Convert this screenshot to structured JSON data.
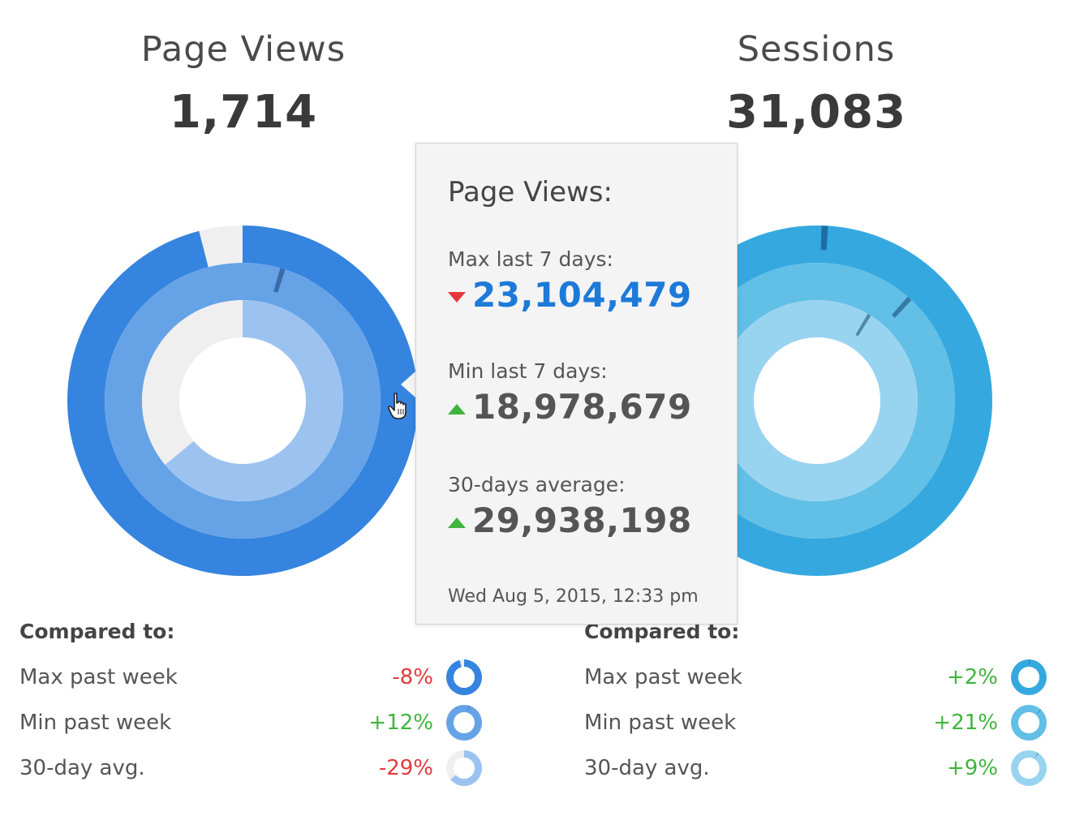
{
  "panels": [
    {
      "title": "Page Views",
      "value": "1,714",
      "compared_label": "Compared to:",
      "rows": [
        {
          "label": "Max past week",
          "pct": "-8%",
          "trend": "down"
        },
        {
          "label": "Min past week",
          "pct": "+12%",
          "trend": "up"
        },
        {
          "label": "30-day avg.",
          "pct": "-29%",
          "trend": "down"
        }
      ]
    },
    {
      "title": "Sessions",
      "value": "31,083",
      "compared_label": "Compared to:",
      "rows": [
        {
          "label": "Max past week",
          "pct": "+2%",
          "trend": "up"
        },
        {
          "label": "Min past week",
          "pct": "+21%",
          "trend": "up"
        },
        {
          "label": "30-day avg.",
          "pct": "+9%",
          "trend": "up"
        }
      ]
    }
  ],
  "tooltip": {
    "title": "Page Views:",
    "items": [
      {
        "label": "Max last 7 days:",
        "value": "23,104,479",
        "trend": "down"
      },
      {
        "label": "Min last 7 days:",
        "value": "18,978,679",
        "trend": "up"
      },
      {
        "label": "30-days average:",
        "value": "29,938,198",
        "trend": "up"
      }
    ],
    "date": "Wed Aug 5, 2015, 12:33 pm"
  },
  "colors": {
    "blue_outer": "#3584df",
    "blue_middle": "#66a3e6",
    "blue_inner": "#9cc3f0",
    "cyan_outer": "#35a9df",
    "cyan_middle": "#62bfe6",
    "cyan_inner": "#98d4f0",
    "track": "#efefef",
    "negative": "#e4393c",
    "positive": "#3fb43f",
    "tooltip_highlight": "#1d7ad8",
    "tooltip_value": "#555555"
  },
  "chart_data": [
    {
      "type": "pie",
      "title": "Page Views",
      "value": 1714,
      "rings": [
        {
          "name": "Max past week",
          "fraction": 0.96,
          "color": "#3584df"
        },
        {
          "name": "Min past week",
          "fraction": 1.0,
          "color": "#66a3e6",
          "marker": 0.05
        },
        {
          "name": "30-day avg.",
          "fraction": 0.64,
          "color": "#9cc3f0"
        }
      ],
      "comparisons": [
        {
          "name": "Max past week",
          "change_pct": -8
        },
        {
          "name": "Min past week",
          "change_pct": 12
        },
        {
          "name": "30-day avg.",
          "change_pct": -29
        }
      ]
    },
    {
      "type": "pie",
      "title": "Sessions",
      "value": 31083,
      "rings": [
        {
          "name": "Max past week",
          "fraction": 1.0,
          "color": "#35a9df",
          "marker": 0.01
        },
        {
          "name": "Min past week",
          "fraction": 1.0,
          "color": "#62bfe6",
          "marker": 0.12
        },
        {
          "name": "30-day avg.",
          "fraction": 1.0,
          "color": "#98d4f0",
          "marker": 0.09
        }
      ],
      "comparisons": [
        {
          "name": "Max past week",
          "change_pct": 2
        },
        {
          "name": "Min past week",
          "change_pct": 21
        },
        {
          "name": "30-day avg.",
          "change_pct": 9
        }
      ]
    }
  ]
}
